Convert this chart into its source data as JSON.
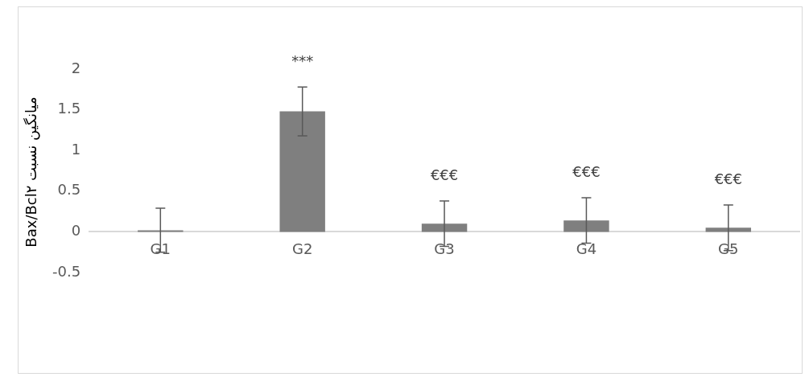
{
  "chart_data": {
    "type": "bar",
    "ylabel": "میانگین نسبت Bax/Bcl۲",
    "categories": [
      "G1",
      "G2",
      "G3",
      "G4",
      "G5"
    ],
    "series": [
      {
        "color": "#7f7f7f",
        "values": [
          0.02,
          1.48,
          0.1,
          0.14,
          0.05
        ],
        "errors": [
          0.27,
          0.3,
          0.28,
          0.28,
          0.28
        ]
      }
    ],
    "ylim": [
      -0.5,
      2
    ],
    "yticks": [
      -0.5,
      0,
      0.5,
      1,
      1.5,
      2
    ],
    "grid": false,
    "legend": false,
    "annotations": [
      "***",
      "€€€",
      "€€€",
      "€€€"
    ]
  }
}
